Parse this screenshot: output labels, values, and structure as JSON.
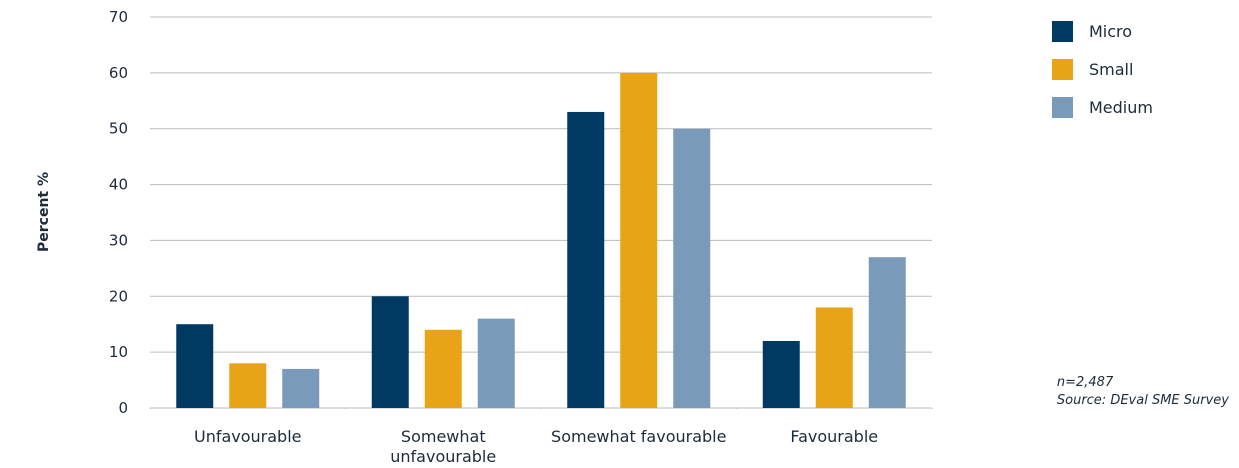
{
  "chart_data": {
    "type": "bar",
    "categories": [
      "Unfavourable",
      "Somewhat unfavourable",
      "Somewhat favourable",
      "Favourable"
    ],
    "category_lines": [
      [
        "Unfavourable"
      ],
      [
        "Somewhat",
        "unfavourable"
      ],
      [
        "Somewhat favourable"
      ],
      [
        "Favourable"
      ]
    ],
    "series": [
      {
        "name": "Micro",
        "values": [
          15,
          20,
          53,
          12
        ],
        "color": "#003a63"
      },
      {
        "name": "Small",
        "values": [
          8,
          14,
          60,
          18
        ],
        "color": "#e8a317"
      },
      {
        "name": "Medium",
        "values": [
          7,
          16,
          50,
          27
        ],
        "color": "#7a9aba"
      }
    ],
    "ylabel": "Percent %",
    "xlabel": "",
    "ylim": [
      0,
      70
    ],
    "yticks": [
      0,
      10,
      20,
      30,
      40,
      50,
      60,
      70
    ],
    "grid": true,
    "legend_position": "top-right"
  },
  "notes": {
    "sample": "n=2,487",
    "source": "Source: DEval SME Survey"
  }
}
